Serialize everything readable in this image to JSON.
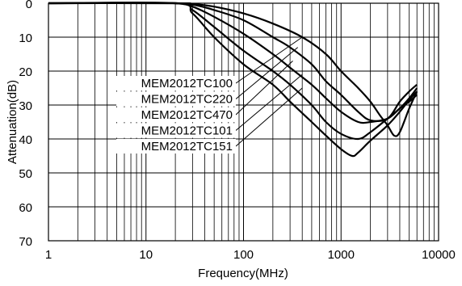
{
  "chart_data": {
    "type": "line",
    "title": "",
    "xlabel": "Frequency(MHz)",
    "ylabel": "Attenuation(dB)",
    "x_scale": "log",
    "xlim": [
      1,
      10000
    ],
    "ylim": [
      0,
      70
    ],
    "y_inverted": true,
    "grid": true,
    "x_tick_labels": [
      "1",
      "10",
      "100",
      "1000",
      "10000"
    ],
    "x_tick_values": [
      1,
      10,
      100,
      1000,
      10000
    ],
    "y_tick_labels": [
      "0",
      "10",
      "20",
      "30",
      "40",
      "50",
      "60",
      "70"
    ],
    "y_tick_values": [
      0,
      10,
      20,
      30,
      40,
      50,
      60,
      70
    ],
    "series": [
      {
        "name": "MEM2012TC100",
        "points": [
          [
            1,
            0
          ],
          [
            20,
            0
          ],
          [
            30,
            0.2
          ],
          [
            50,
            1
          ],
          [
            100,
            3
          ],
          [
            200,
            6
          ],
          [
            400,
            10
          ],
          [
            700,
            15
          ],
          [
            1000,
            20
          ],
          [
            1500,
            25
          ],
          [
            2000,
            29
          ],
          [
            2500,
            33
          ],
          [
            3000,
            36
          ],
          [
            3500,
            39
          ],
          [
            4000,
            38
          ],
          [
            5000,
            31
          ],
          [
            6000,
            26
          ]
        ]
      },
      {
        "name": "MEM2012TC220",
        "points": [
          [
            1,
            0
          ],
          [
            20,
            0
          ],
          [
            30,
            0.4
          ],
          [
            50,
            2
          ],
          [
            100,
            5
          ],
          [
            200,
            10
          ],
          [
            300,
            13
          ],
          [
            500,
            18
          ],
          [
            700,
            23
          ],
          [
            1000,
            27
          ],
          [
            1500,
            32
          ],
          [
            2000,
            34.5
          ],
          [
            3000,
            34
          ],
          [
            4000,
            29
          ],
          [
            5000,
            26
          ],
          [
            6000,
            24
          ]
        ]
      },
      {
        "name": "MEM2012TC470",
        "points": [
          [
            1,
            0
          ],
          [
            20,
            0
          ],
          [
            30,
            1
          ],
          [
            50,
            4
          ],
          [
            100,
            9
          ],
          [
            200,
            15
          ],
          [
            300,
            19
          ],
          [
            500,
            24
          ],
          [
            700,
            28
          ],
          [
            1000,
            32
          ],
          [
            1500,
            35
          ],
          [
            2000,
            35
          ],
          [
            3000,
            34
          ],
          [
            4000,
            31
          ],
          [
            5000,
            29
          ],
          [
            6000,
            27
          ]
        ]
      },
      {
        "name": "MEM2012TC101",
        "points": [
          [
            1,
            0
          ],
          [
            20,
            0
          ],
          [
            30,
            2
          ],
          [
            50,
            7
          ],
          [
            100,
            14
          ],
          [
            200,
            20
          ],
          [
            300,
            24
          ],
          [
            500,
            30
          ],
          [
            700,
            35
          ],
          [
            1000,
            38.5
          ],
          [
            1500,
            40
          ],
          [
            2000,
            38
          ],
          [
            3000,
            34
          ],
          [
            4000,
            31
          ],
          [
            5000,
            28
          ],
          [
            6000,
            25
          ]
        ]
      },
      {
        "name": "MEM2012TC151",
        "points": [
          [
            1,
            0
          ],
          [
            20,
            0
          ],
          [
            30,
            3
          ],
          [
            50,
            10
          ],
          [
            100,
            18
          ],
          [
            200,
            24
          ],
          [
            300,
            29
          ],
          [
            500,
            35
          ],
          [
            700,
            39
          ],
          [
            1000,
            43
          ],
          [
            1300,
            45
          ],
          [
            1500,
            44
          ],
          [
            2000,
            40.5
          ],
          [
            3000,
            36
          ],
          [
            4000,
            32
          ],
          [
            5000,
            28.5
          ],
          [
            6000,
            26
          ]
        ]
      }
    ]
  }
}
